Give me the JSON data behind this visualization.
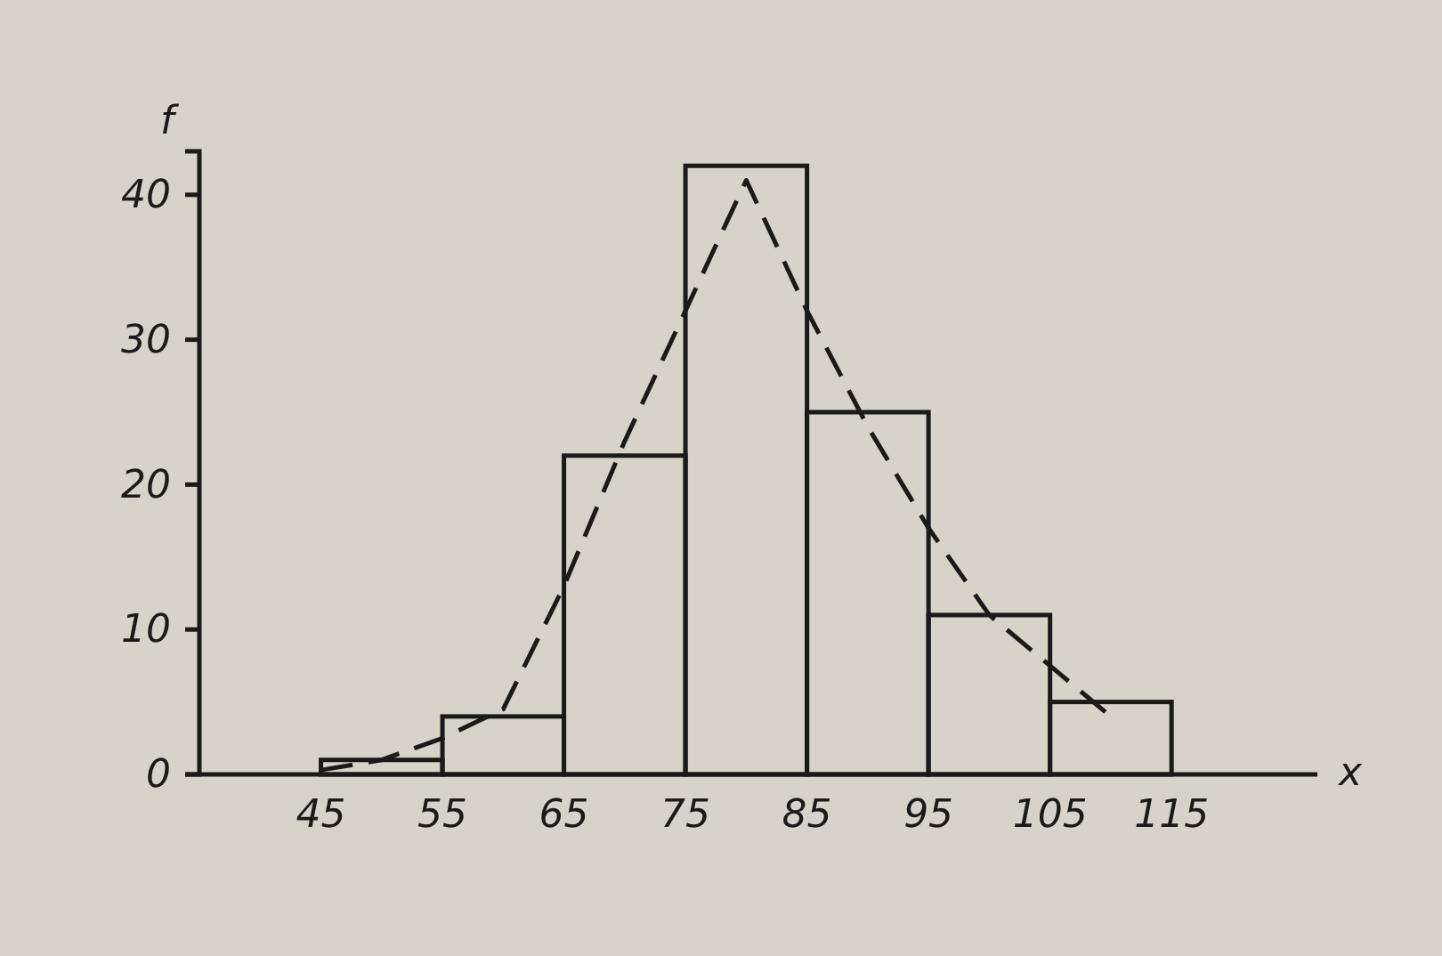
{
  "chart_data": {
    "type": "histogram",
    "xlabel": "x",
    "ylabel": "f",
    "bins": [
      45,
      55,
      65,
      75,
      85,
      95,
      105,
      115
    ],
    "values": [
      1,
      4,
      22,
      42,
      25,
      11,
      5
    ],
    "color": "#1a1a1a",
    "xlim": [
      35,
      127
    ],
    "ylim": [
      0,
      43
    ],
    "xticks": [
      45,
      55,
      65,
      75,
      85,
      95,
      105,
      115
    ],
    "yticks": [
      0,
      10,
      20,
      30,
      40
    ],
    "grid": false,
    "series": [
      {
        "type": "line",
        "line_style": "dashed",
        "color": "#1a1a1a",
        "x": [
          45,
          50,
          55,
          60,
          65,
          70,
          75,
          80,
          85,
          90,
          95,
          100,
          105,
          110
        ],
        "values": [
          0.3,
          1,
          2.5,
          4.5,
          13,
          23,
          32,
          41,
          32,
          24,
          17,
          11,
          7.5,
          4
        ]
      }
    ]
  }
}
